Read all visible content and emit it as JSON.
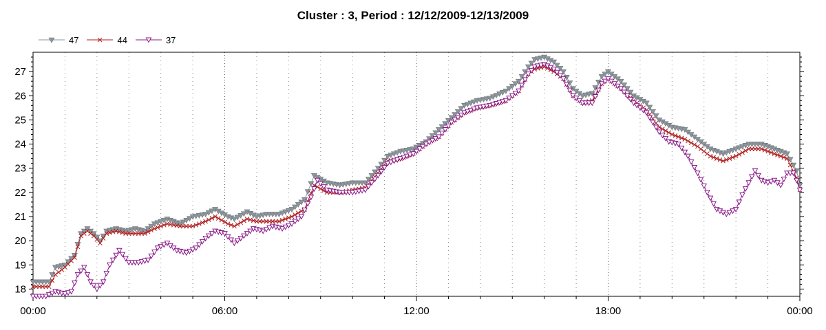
{
  "chart_data": {
    "type": "line",
    "title": "Cluster : 3, Period : 12/12/2009-12/13/2009",
    "xlabel": "",
    "ylabel": "",
    "x_tick_labels": [
      "00:00",
      "06:00",
      "12:00",
      "18:00",
      "00:00"
    ],
    "x_range_hours": [
      0,
      24
    ],
    "y_ticks": [
      18,
      19,
      20,
      21,
      22,
      23,
      24,
      25,
      26,
      27
    ],
    "ylim": [
      17.7,
      27.8
    ],
    "grid": "vertical dotted",
    "legend": "top-left",
    "series": [
      {
        "name": "47",
        "color": "#8c969c",
        "marker": "triangle-down-filled",
        "points": [
          [
            0,
            18.3
          ],
          [
            0.5,
            18.3
          ],
          [
            0.7,
            18.9
          ],
          [
            1.0,
            19.0
          ],
          [
            1.3,
            19.4
          ],
          [
            1.5,
            20.3
          ],
          [
            1.7,
            20.5
          ],
          [
            1.9,
            20.3
          ],
          [
            2.1,
            20.0
          ],
          [
            2.3,
            20.4
          ],
          [
            2.6,
            20.5
          ],
          [
            2.9,
            20.4
          ],
          [
            3.2,
            20.5
          ],
          [
            3.5,
            20.4
          ],
          [
            3.8,
            20.7
          ],
          [
            4.2,
            20.9
          ],
          [
            4.6,
            20.7
          ],
          [
            5.0,
            21.0
          ],
          [
            5.4,
            21.1
          ],
          [
            5.7,
            21.3
          ],
          [
            6.1,
            21.0
          ],
          [
            6.3,
            20.9
          ],
          [
            6.7,
            21.2
          ],
          [
            7.0,
            21.0
          ],
          [
            7.3,
            21.1
          ],
          [
            7.7,
            21.1
          ],
          [
            8.1,
            21.3
          ],
          [
            8.5,
            21.7
          ],
          [
            8.8,
            22.7
          ],
          [
            9.2,
            22.4
          ],
          [
            9.6,
            22.3
          ],
          [
            10.0,
            22.4
          ],
          [
            10.4,
            22.4
          ],
          [
            10.8,
            23.0
          ],
          [
            11.1,
            23.5
          ],
          [
            11.5,
            23.7
          ],
          [
            11.9,
            23.8
          ],
          [
            12.3,
            24.1
          ],
          [
            12.7,
            24.6
          ],
          [
            13.1,
            25.1
          ],
          [
            13.5,
            25.6
          ],
          [
            13.9,
            25.8
          ],
          [
            14.3,
            25.9
          ],
          [
            14.8,
            26.2
          ],
          [
            15.2,
            26.6
          ],
          [
            15.5,
            27.2
          ],
          [
            15.7,
            27.5
          ],
          [
            16.0,
            27.6
          ],
          [
            16.3,
            27.4
          ],
          [
            16.6,
            27.0
          ],
          [
            16.9,
            26.3
          ],
          [
            17.2,
            26.0
          ],
          [
            17.5,
            26.1
          ],
          [
            17.8,
            26.8
          ],
          [
            18.0,
            27.0
          ],
          [
            18.4,
            26.6
          ],
          [
            18.8,
            26.0
          ],
          [
            19.2,
            25.7
          ],
          [
            19.6,
            25.0
          ],
          [
            20.0,
            24.7
          ],
          [
            20.4,
            24.6
          ],
          [
            20.8,
            24.2
          ],
          [
            21.2,
            23.8
          ],
          [
            21.6,
            23.6
          ],
          [
            22.0,
            23.8
          ],
          [
            22.4,
            24.0
          ],
          [
            22.8,
            24.0
          ],
          [
            23.2,
            23.8
          ],
          [
            23.6,
            23.6
          ],
          [
            23.9,
            22.9
          ],
          [
            24.0,
            22.3
          ]
        ]
      },
      {
        "name": "44",
        "color": "#b01e1e",
        "marker": "x",
        "points": [
          [
            0,
            18.1
          ],
          [
            0.5,
            18.1
          ],
          [
            0.7,
            18.6
          ],
          [
            1.0,
            18.9
          ],
          [
            1.3,
            19.3
          ],
          [
            1.5,
            20.2
          ],
          [
            1.7,
            20.4
          ],
          [
            1.9,
            20.2
          ],
          [
            2.1,
            19.9
          ],
          [
            2.3,
            20.3
          ],
          [
            2.6,
            20.4
          ],
          [
            2.9,
            20.3
          ],
          [
            3.2,
            20.3
          ],
          [
            3.5,
            20.3
          ],
          [
            3.8,
            20.5
          ],
          [
            4.2,
            20.7
          ],
          [
            4.6,
            20.6
          ],
          [
            5.0,
            20.6
          ],
          [
            5.4,
            20.8
          ],
          [
            5.7,
            21.0
          ],
          [
            6.1,
            20.7
          ],
          [
            6.3,
            20.6
          ],
          [
            6.7,
            20.9
          ],
          [
            7.0,
            20.8
          ],
          [
            7.3,
            20.8
          ],
          [
            7.7,
            20.8
          ],
          [
            8.1,
            21.0
          ],
          [
            8.5,
            21.3
          ],
          [
            8.8,
            22.3
          ],
          [
            9.2,
            22.0
          ],
          [
            9.6,
            22.0
          ],
          [
            10.0,
            22.1
          ],
          [
            10.4,
            22.2
          ],
          [
            10.8,
            22.8
          ],
          [
            11.1,
            23.3
          ],
          [
            11.5,
            23.4
          ],
          [
            11.9,
            23.6
          ],
          [
            12.3,
            24.0
          ],
          [
            12.7,
            24.3
          ],
          [
            13.1,
            24.9
          ],
          [
            13.5,
            25.3
          ],
          [
            13.9,
            25.5
          ],
          [
            14.3,
            25.6
          ],
          [
            14.8,
            25.8
          ],
          [
            15.2,
            26.2
          ],
          [
            15.5,
            26.9
          ],
          [
            15.7,
            27.1
          ],
          [
            16.0,
            27.2
          ],
          [
            16.3,
            27.0
          ],
          [
            16.6,
            26.7
          ],
          [
            16.9,
            26.0
          ],
          [
            17.2,
            25.7
          ],
          [
            17.5,
            25.8
          ],
          [
            17.8,
            26.5
          ],
          [
            18.0,
            26.7
          ],
          [
            18.4,
            26.3
          ],
          [
            18.8,
            25.8
          ],
          [
            19.2,
            25.4
          ],
          [
            19.6,
            24.7
          ],
          [
            20.0,
            24.4
          ],
          [
            20.4,
            24.2
          ],
          [
            20.8,
            23.9
          ],
          [
            21.2,
            23.5
          ],
          [
            21.6,
            23.3
          ],
          [
            22.0,
            23.5
          ],
          [
            22.4,
            23.8
          ],
          [
            22.8,
            23.8
          ],
          [
            23.2,
            23.6
          ],
          [
            23.6,
            23.4
          ],
          [
            23.9,
            22.6
          ],
          [
            24.0,
            22.1
          ]
        ]
      },
      {
        "name": "37",
        "color": "#8a1a8a",
        "marker": "triangle-down-open",
        "points": [
          [
            0,
            17.7
          ],
          [
            0.4,
            17.7
          ],
          [
            0.7,
            17.9
          ],
          [
            1.0,
            17.8
          ],
          [
            1.2,
            17.9
          ],
          [
            1.4,
            18.6
          ],
          [
            1.6,
            18.9
          ],
          [
            1.8,
            18.3
          ],
          [
            2.0,
            18.0
          ],
          [
            2.2,
            18.3
          ],
          [
            2.4,
            19.0
          ],
          [
            2.7,
            19.6
          ],
          [
            3.0,
            19.1
          ],
          [
            3.3,
            19.1
          ],
          [
            3.6,
            19.2
          ],
          [
            3.9,
            19.7
          ],
          [
            4.2,
            19.9
          ],
          [
            4.5,
            19.6
          ],
          [
            4.8,
            19.5
          ],
          [
            5.1,
            19.7
          ],
          [
            5.4,
            20.1
          ],
          [
            5.7,
            20.4
          ],
          [
            6.0,
            20.3
          ],
          [
            6.3,
            19.9
          ],
          [
            6.6,
            20.2
          ],
          [
            6.9,
            20.5
          ],
          [
            7.2,
            20.4
          ],
          [
            7.5,
            20.6
          ],
          [
            7.8,
            20.5
          ],
          [
            8.1,
            20.7
          ],
          [
            8.4,
            21.0
          ],
          [
            8.7,
            21.8
          ],
          [
            8.9,
            22.5
          ],
          [
            9.2,
            22.1
          ],
          [
            9.6,
            22.0
          ],
          [
            10.0,
            22.0
          ],
          [
            10.4,
            22.1
          ],
          [
            10.8,
            22.7
          ],
          [
            11.1,
            23.2
          ],
          [
            11.5,
            23.4
          ],
          [
            11.9,
            23.6
          ],
          [
            12.3,
            24.0
          ],
          [
            12.7,
            24.3
          ],
          [
            13.1,
            24.9
          ],
          [
            13.5,
            25.3
          ],
          [
            13.9,
            25.5
          ],
          [
            14.3,
            25.6
          ],
          [
            14.8,
            25.8
          ],
          [
            15.2,
            26.2
          ],
          [
            15.5,
            26.9
          ],
          [
            15.7,
            27.2
          ],
          [
            16.0,
            27.3
          ],
          [
            16.3,
            27.1
          ],
          [
            16.6,
            26.7
          ],
          [
            16.9,
            26.0
          ],
          [
            17.2,
            25.7
          ],
          [
            17.5,
            25.7
          ],
          [
            17.8,
            26.5
          ],
          [
            18.0,
            26.7
          ],
          [
            18.4,
            26.3
          ],
          [
            18.8,
            25.7
          ],
          [
            19.2,
            25.3
          ],
          [
            19.6,
            24.5
          ],
          [
            19.9,
            24.1
          ],
          [
            20.2,
            24.0
          ],
          [
            20.5,
            23.5
          ],
          [
            20.8,
            22.8
          ],
          [
            21.1,
            22.0
          ],
          [
            21.4,
            21.3
          ],
          [
            21.7,
            21.1
          ],
          [
            22.0,
            21.3
          ],
          [
            22.2,
            21.9
          ],
          [
            22.4,
            22.4
          ],
          [
            22.6,
            22.9
          ],
          [
            22.8,
            22.5
          ],
          [
            23.0,
            22.4
          ],
          [
            23.2,
            22.5
          ],
          [
            23.4,
            22.3
          ],
          [
            23.6,
            22.8
          ],
          [
            23.8,
            22.8
          ],
          [
            23.9,
            22.5
          ],
          [
            24.0,
            22.1
          ]
        ]
      }
    ]
  }
}
